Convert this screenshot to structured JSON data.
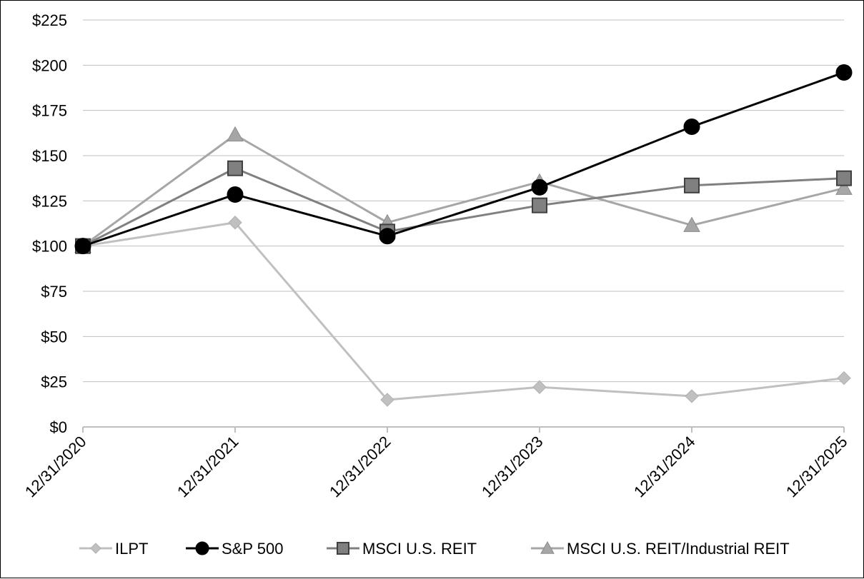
{
  "chart_data": {
    "type": "line",
    "title": "",
    "xlabel": "",
    "ylabel": "",
    "categories": [
      "12/31/2020",
      "12/31/2021",
      "12/31/2022",
      "12/31/2023",
      "12/31/2024",
      "12/31/2025"
    ],
    "ylim": [
      0,
      225
    ],
    "yticks": [
      0,
      25,
      50,
      75,
      100,
      125,
      150,
      175,
      200,
      225
    ],
    "ytick_labels": [
      "$0",
      "$25",
      "$50",
      "$75",
      "$100",
      "$125",
      "$150",
      "$175",
      "$200",
      "$225"
    ],
    "grid": true,
    "legend_position": "bottom",
    "series": [
      {
        "name": "ILPT",
        "marker": "diamond",
        "color": "#c0c0c0",
        "values": [
          100,
          113,
          15,
          22,
          17,
          27
        ]
      },
      {
        "name": "S&P 500",
        "marker": "circle",
        "color": "#000000",
        "values": [
          100,
          128.5,
          105.5,
          132.5,
          166,
          196
        ]
      },
      {
        "name": "MSCI U.S. REIT",
        "marker": "square",
        "color": "#808080",
        "values": [
          100,
          143,
          108,
          122.5,
          133.5,
          137.5
        ]
      },
      {
        "name": "MSCI U.S. REIT/Industrial REIT",
        "marker": "triangle",
        "color": "#a6a6a6",
        "values": [
          100,
          161.5,
          113,
          135.5,
          111.5,
          132
        ]
      }
    ]
  }
}
